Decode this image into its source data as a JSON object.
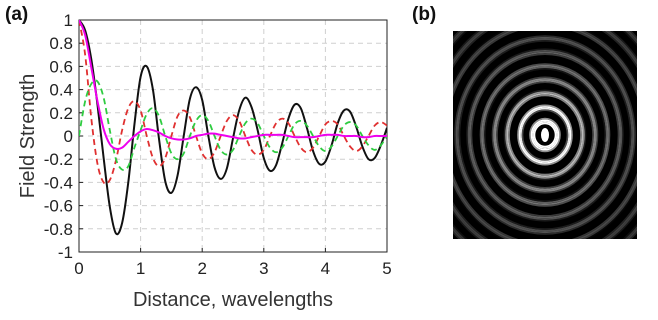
{
  "panels": {
    "a": "(a)",
    "b": "(b)"
  },
  "chart_data": [
    {
      "panel": "(a)",
      "type": "line",
      "xlabel": "Distance, wavelengths",
      "ylabel": "Field Strength",
      "xlim": [
        0,
        5
      ],
      "ylim": [
        -1,
        1
      ],
      "xticks": [
        0,
        1,
        2,
        3,
        4,
        5
      ],
      "yticks": [
        1,
        0.8,
        0.6,
        0.4,
        0.2,
        0,
        -0.2,
        -0.4,
        -0.6,
        -0.8,
        -1
      ],
      "xtick_labels": [
        "0",
        "1",
        "2",
        "3",
        "4",
        "5"
      ],
      "ytick_labels": [
        "1",
        "0.8",
        "0.6",
        "0.4",
        "0.2",
        "0",
        "-0.2",
        "-0.4",
        "-0.6",
        "-0.8",
        "-1"
      ],
      "grid": true,
      "series": [
        {
          "style": "solid",
          "color": "#111111",
          "x": [
            0,
            0.1,
            0.2,
            0.3,
            0.4,
            0.5,
            0.6,
            0.7,
            0.8,
            0.9,
            1.0,
            1.1,
            1.2,
            1.3,
            1.4,
            1.5,
            1.6,
            1.7,
            1.8,
            1.9,
            2.0,
            2.1,
            2.2,
            2.3,
            2.4,
            2.5,
            2.6,
            2.7,
            2.8,
            2.9,
            3.0,
            3.1,
            3.2,
            3.3,
            3.4,
            3.5,
            3.6,
            3.7,
            3.8,
            3.9,
            4.0,
            4.1,
            4.2,
            4.3,
            4.4,
            4.5,
            4.6,
            4.7,
            4.8,
            4.9,
            5.0
          ],
          "y": [
            1.0,
            0.91,
            0.66,
            0.27,
            -0.19,
            -0.61,
            -0.84,
            -0.75,
            -0.4,
            0.1,
            0.51,
            0.6,
            0.4,
            -0.03,
            -0.39,
            -0.49,
            -0.34,
            0.0,
            0.32,
            0.42,
            0.31,
            0.0,
            -0.27,
            -0.37,
            -0.28,
            -0.02,
            0.22,
            0.33,
            0.25,
            0.05,
            -0.19,
            -0.3,
            -0.25,
            -0.06,
            0.15,
            0.27,
            0.24,
            0.07,
            -0.13,
            -0.24,
            -0.22,
            -0.08,
            0.11,
            0.22,
            0.21,
            0.08,
            -0.09,
            -0.2,
            -0.19,
            -0.08,
            0.07
          ]
        },
        {
          "style": "dashed",
          "color": "#e03030",
          "x": [
            0,
            0.1,
            0.2,
            0.3,
            0.4,
            0.5,
            0.6,
            0.7,
            0.8,
            0.9,
            1.0,
            1.1,
            1.2,
            1.3,
            1.4,
            1.5,
            1.6,
            1.7,
            1.8,
            1.9,
            2.0,
            2.1,
            2.2,
            2.3,
            2.4,
            2.5,
            2.6,
            2.7,
            2.8,
            2.9,
            3.0,
            3.1,
            3.2,
            3.3,
            3.4,
            3.5,
            3.6,
            3.7,
            3.8,
            3.9,
            4.0,
            4.1,
            4.2,
            4.3,
            4.4,
            4.5,
            4.6,
            4.7,
            4.8,
            4.9,
            5.0
          ],
          "y": [
            1.0,
            0.7,
            0.15,
            -0.24,
            -0.4,
            -0.38,
            -0.21,
            0.05,
            0.24,
            0.3,
            0.22,
            0.0,
            -0.19,
            -0.26,
            -0.19,
            0.0,
            0.17,
            0.22,
            0.16,
            0.0,
            -0.15,
            -0.2,
            -0.14,
            0.0,
            0.13,
            0.18,
            0.13,
            0.0,
            -0.12,
            -0.16,
            -0.12,
            0.0,
            0.11,
            0.15,
            0.11,
            0.0,
            -0.1,
            -0.14,
            -0.1,
            0.0,
            0.1,
            0.13,
            0.1,
            0.0,
            -0.09,
            -0.13,
            -0.09,
            0.0,
            0.09,
            0.12,
            0.09
          ]
        },
        {
          "style": "dashed",
          "color": "#2ecc40",
          "x": [
            0,
            0.1,
            0.2,
            0.3,
            0.4,
            0.5,
            0.6,
            0.7,
            0.8,
            0.9,
            1.0,
            1.1,
            1.2,
            1.3,
            1.4,
            1.5,
            1.6,
            1.7,
            1.8,
            1.9,
            2.0,
            2.1,
            2.2,
            2.3,
            2.4,
            2.5,
            2.6,
            2.7,
            2.8,
            2.9,
            3.0,
            3.1,
            3.2,
            3.3,
            3.4,
            3.5,
            3.6,
            3.7,
            3.8,
            3.9,
            4.0,
            4.1,
            4.2,
            4.3,
            4.4,
            4.5,
            4.6,
            4.7,
            4.8,
            4.9,
            5.0
          ],
          "y": [
            0.0,
            0.3,
            0.45,
            0.47,
            0.33,
            0.05,
            -0.2,
            -0.29,
            -0.26,
            -0.1,
            0.05,
            0.19,
            0.24,
            0.17,
            0.0,
            -0.15,
            -0.2,
            -0.15,
            0.0,
            0.13,
            0.18,
            0.13,
            0.0,
            -0.12,
            -0.16,
            -0.12,
            0.0,
            0.11,
            0.15,
            0.11,
            0.0,
            -0.1,
            -0.14,
            -0.1,
            0.0,
            0.1,
            0.13,
            0.09,
            0.0,
            -0.09,
            -0.13,
            -0.09,
            0.0,
            0.09,
            0.12,
            0.09,
            0.0,
            -0.08,
            -0.12,
            -0.08,
            0.0
          ]
        },
        {
          "style": "solid",
          "color": "#ee00ee",
          "x": [
            0,
            0.1,
            0.2,
            0.3,
            0.4,
            0.5,
            0.6,
            0.7,
            0.8,
            0.9,
            1.0,
            1.1,
            1.2,
            1.3,
            1.4,
            1.5,
            1.6,
            1.7,
            1.8,
            1.9,
            2.0,
            2.1,
            2.2,
            2.3,
            2.4,
            2.5,
            2.6,
            2.7,
            2.8,
            2.9,
            3.0,
            3.1,
            3.2,
            3.3,
            3.4,
            3.5,
            3.6,
            3.7,
            3.8,
            3.9,
            4.0,
            4.1,
            4.2,
            4.3,
            4.4,
            4.5,
            4.6,
            4.7,
            4.8,
            4.9,
            5.0
          ],
          "y": [
            1.0,
            0.87,
            0.59,
            0.3,
            0.06,
            -0.07,
            -0.11,
            -0.1,
            -0.05,
            0.0,
            0.04,
            0.06,
            0.05,
            0.03,
            0.0,
            -0.02,
            -0.03,
            -0.03,
            -0.02,
            0.0,
            0.01,
            0.02,
            0.02,
            0.01,
            0.0,
            -0.01,
            -0.02,
            -0.02,
            -0.01,
            0.0,
            0.01,
            0.01,
            0.01,
            0.01,
            0.0,
            -0.01,
            -0.01,
            -0.01,
            -0.01,
            0.0,
            0.01,
            0.01,
            0.01,
            0.0,
            0.0,
            0.0,
            -0.01,
            -0.01,
            0.0,
            0.0,
            0.0
          ]
        }
      ]
    },
    {
      "panel": "(b)",
      "type": "heatmap",
      "description_visible": "grayscale concentric interference rings, bright center",
      "colormap": "gray"
    }
  ]
}
